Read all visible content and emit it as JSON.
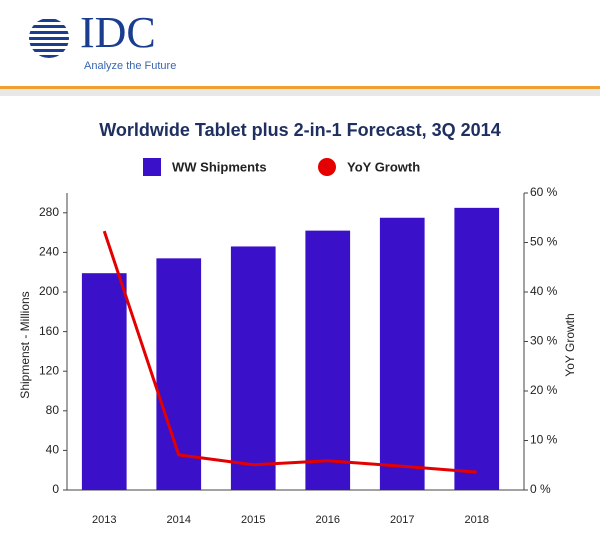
{
  "header": {
    "logo": "IDC",
    "tagline": "Analyze the Future"
  },
  "chart_data": {
    "type": "bar_line",
    "title": "Worldwide Tablet plus 2-in-1 Forecast, 3Q 2014",
    "y_label": "Shipmenst - Millions",
    "y2_label": "YoY Growth",
    "categories": [
      "2013",
      "2014",
      "2015",
      "2016",
      "2017",
      "2018"
    ],
    "series": [
      {
        "name": "WW Shipments",
        "color": "#3a10c8",
        "type": "bar",
        "values": [
          219,
          234,
          246,
          262,
          275,
          285
        ]
      },
      {
        "name": "YoY Growth",
        "color": "#e40000",
        "type": "line",
        "axis": "y2",
        "values": [
          52.3,
          7.1,
          5.1,
          5.9,
          4.8,
          3.6
        ]
      }
    ],
    "ylim": [
      0,
      300
    ],
    "yticks": [
      0,
      40,
      80,
      120,
      160,
      200,
      240,
      280
    ],
    "y2lim": [
      0,
      60
    ],
    "y2ticks": [
      {
        "value": 0,
        "label": "0 %"
      },
      {
        "value": 10,
        "label": "10 %"
      },
      {
        "value": 20,
        "label": "20 %"
      },
      {
        "value": 30,
        "label": "30 %"
      },
      {
        "value": 40,
        "label": "40 %"
      },
      {
        "value": 50,
        "label": "50 %"
      },
      {
        "value": 60,
        "label": "60 %"
      }
    ],
    "grid": false
  }
}
